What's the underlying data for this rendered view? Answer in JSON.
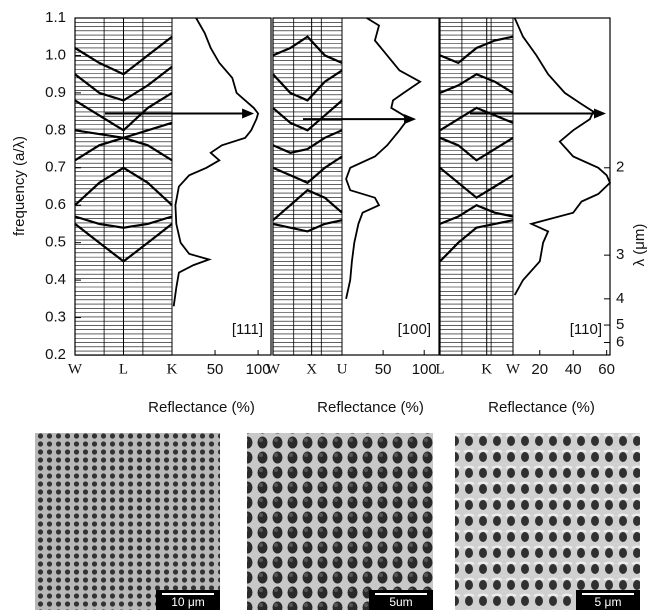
{
  "chart_data": {
    "type": "band-reflectance",
    "ylabel": "frequency (a/λ)",
    "ylim": [
      0.2,
      1.1
    ],
    "yticks": [
      0.2,
      0.3,
      0.4,
      0.5,
      0.6,
      0.7,
      0.8,
      0.9,
      {
        "value": 1,
        "label": "1.0"
      },
      1.1
    ],
    "y2label": "λ (μm)",
    "y2_factor": 1.4,
    "y2ticks": [
      2,
      3,
      4,
      5,
      6
    ],
    "panels": [
      {
        "kpoints": [
          "W",
          "L",
          "K"
        ],
        "direction": "[111]",
        "xlabel": "Reflectance (%)",
        "xlim": [
          0,
          115
        ],
        "xticks": [
          50,
          100
        ],
        "arrow": 0.845,
        "bands": [
          [
            0.55,
            0.5,
            0.45,
            0.5,
            0.55
          ],
          [
            0.57,
            0.55,
            0.54,
            0.55,
            0.57
          ],
          [
            0.6,
            0.66,
            0.7,
            0.66,
            0.6
          ],
          [
            0.72,
            0.76,
            0.78,
            0.76,
            0.72
          ],
          [
            0.8,
            0.79,
            0.78,
            0.8,
            0.82
          ],
          [
            0.88,
            0.84,
            0.8,
            0.86,
            0.9
          ],
          [
            0.95,
            0.9,
            0.88,
            0.92,
            0.97
          ],
          [
            1.02,
            0.98,
            0.95,
            1.0,
            1.05
          ]
        ],
        "freq": [
          0.33,
          0.38,
          0.42,
          0.44,
          0.455,
          0.47,
          0.5,
          0.55,
          0.6,
          0.65,
          0.68,
          0.7,
          0.72,
          0.74,
          0.76,
          0.78,
          0.8,
          0.83,
          0.845,
          0.86,
          0.88,
          0.9,
          0.94,
          0.98,
          1.02,
          1.06,
          1.1
        ],
        "reflectance": [
          2,
          5,
          8,
          25,
          43,
          20,
          10,
          5,
          4,
          8,
          20,
          40,
          55,
          45,
          58,
          85,
          92,
          98,
          100,
          95,
          85,
          75,
          70,
          55,
          45,
          38,
          28
        ]
      },
      {
        "kpoints": [
          "W",
          "X",
          "U"
        ],
        "direction": "[100]",
        "xlabel": "Reflectance (%)",
        "xlim": [
          0,
          118
        ],
        "xticks": [
          50,
          100
        ],
        "arrow": 0.83,
        "bands": [
          [
            0.55,
            0.54,
            0.53,
            0.55,
            0.56
          ],
          [
            0.56,
            0.6,
            0.64,
            0.62,
            0.58
          ],
          [
            0.7,
            0.68,
            0.66,
            0.7,
            0.73
          ],
          [
            0.76,
            0.74,
            0.75,
            0.78,
            0.8
          ],
          [
            0.86,
            0.82,
            0.8,
            0.84,
            0.88
          ],
          [
            0.95,
            0.9,
            0.88,
            0.93,
            0.96
          ],
          [
            1.0,
            1.02,
            1.05,
            1.0,
            0.98
          ]
        ],
        "freq": [
          0.35,
          0.4,
          0.45,
          0.5,
          0.55,
          0.58,
          0.6,
          0.62,
          0.64,
          0.67,
          0.7,
          0.73,
          0.76,
          0.8,
          0.83,
          0.84,
          0.86,
          0.88,
          0.9,
          0.93,
          0.96,
          1.0,
          1.04,
          1.08,
          1.1
        ],
        "reflectance": [
          5,
          10,
          12,
          15,
          20,
          25,
          45,
          40,
          10,
          5,
          10,
          40,
          55,
          70,
          80,
          75,
          60,
          62,
          75,
          95,
          70,
          55,
          40,
          45,
          30
        ]
      },
      {
        "kpoints": [
          "L",
          "K",
          "W"
        ],
        "direction": "[110]",
        "xlabel": "Reflectance (%)",
        "xlim": [
          4,
          62
        ],
        "xticks": [
          20,
          40,
          60
        ],
        "arrow": 0.845,
        "bands": [
          [
            0.45,
            0.5,
            0.54,
            0.55,
            0.56
          ],
          [
            0.55,
            0.57,
            0.6,
            0.58,
            0.57
          ],
          [
            0.7,
            0.66,
            0.62,
            0.65,
            0.68
          ],
          [
            0.78,
            0.76,
            0.72,
            0.75,
            0.78
          ],
          [
            0.8,
            0.83,
            0.86,
            0.84,
            0.82
          ],
          [
            0.9,
            0.92,
            0.95,
            0.93,
            0.9
          ],
          [
            1.0,
            0.98,
            1.02,
            1.04,
            1.05
          ]
        ],
        "freq": [
          0.36,
          0.4,
          0.45,
          0.5,
          0.53,
          0.55,
          0.58,
          0.61,
          0.63,
          0.66,
          0.68,
          0.7,
          0.73,
          0.77,
          0.8,
          0.83,
          0.85,
          0.87,
          0.9,
          0.95,
          1.0,
          1.05,
          1.1
        ],
        "reflectance": [
          5,
          10,
          20,
          22,
          25,
          15,
          40,
          45,
          55,
          62,
          60,
          55,
          40,
          32,
          40,
          50,
          52,
          45,
          35,
          25,
          18,
          10,
          5
        ]
      }
    ]
  },
  "images": [
    {
      "scale_bar": "10 μm"
    },
    {
      "scale_bar": "5um"
    },
    {
      "scale_bar": "5 μm"
    }
  ]
}
